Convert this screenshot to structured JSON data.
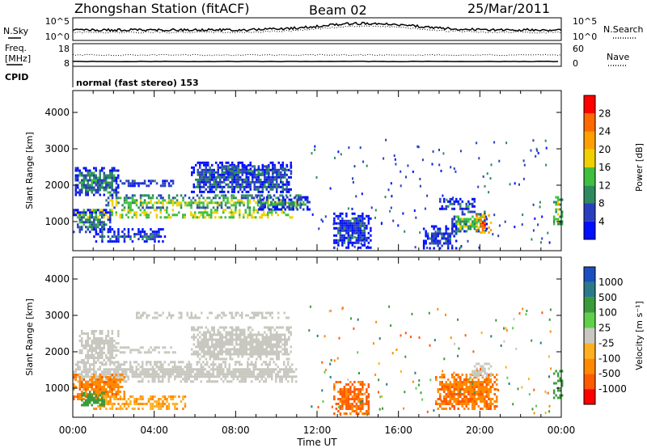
{
  "header": {
    "station": "Zhongshan Station (fitACF)",
    "beam": "Beam 02",
    "date": "25/Mar/2011"
  },
  "strips": {
    "nsky_label": "N.Sky",
    "nsky_ticks": [
      "10^5",
      "10^0"
    ],
    "nsearch_label": "N.Search",
    "nsearch_ticks": [
      "10^5",
      "10^0"
    ],
    "freq_label_1": "Freq.",
    "freq_label_2": "[MHz]",
    "freq_ticks": [
      "18",
      "8"
    ],
    "nave_label": "Nave",
    "nave_ticks": [
      "60",
      "0"
    ],
    "cpid_label": "CPID",
    "cpid_text": "normal (fast stereo) 153"
  },
  "chart_data": [
    {
      "type": "heatmap",
      "panel": "power",
      "ylabel": "Slant Range [km]",
      "xlabel": "Time UT",
      "x_ticks": [
        "00:00",
        "04:00",
        "08:00",
        "12:00",
        "16:00",
        "20:00",
        "00:00"
      ],
      "xlim_hours": [
        0,
        24
      ],
      "ylim": [
        200,
        4600
      ],
      "y_ticks": [
        1000,
        2000,
        3000,
        4000
      ],
      "colorbar_label": "Power [dB]",
      "colorbar_ticks": [
        4,
        8,
        12,
        16,
        20,
        24,
        28
      ],
      "colorbar_colors": [
        "#0010ff",
        "#2a3fbf",
        "#2e8a5e",
        "#3fbf3f",
        "#f0d000",
        "#ffa000",
        "#ff6a00",
        "#ff0000"
      ],
      "blobs": [
        {
          "t0": 0.0,
          "t1": 10.8,
          "r0": 1130,
          "r1": 1350,
          "v": 22
        },
        {
          "t0": 1.6,
          "t1": 11.2,
          "r0": 1380,
          "r1": 1750,
          "v": 15
        },
        {
          "t0": 0.1,
          "t1": 2.2,
          "r0": 1700,
          "r1": 2500,
          "v": 9
        },
        {
          "t0": 2.0,
          "t1": 5.0,
          "r0": 1950,
          "r1": 2150,
          "v": 11
        },
        {
          "t0": 0.0,
          "t1": 1.8,
          "r0": 700,
          "r1": 1350,
          "v": 9
        },
        {
          "t0": 1.0,
          "t1": 4.5,
          "r0": 420,
          "r1": 820,
          "v": 6
        },
        {
          "t0": 5.8,
          "t1": 10.7,
          "r0": 1800,
          "r1": 2650,
          "v": 6
        },
        {
          "t0": 7.4,
          "t1": 10.7,
          "r0": 2300,
          "r1": 2550,
          "v": 12
        },
        {
          "t0": 9.0,
          "t1": 11.6,
          "r0": 1350,
          "r1": 1700,
          "v": 10
        },
        {
          "t0": 18.0,
          "t1": 19.7,
          "r0": 1350,
          "r1": 1650,
          "v": 10
        },
        {
          "t0": 18.6,
          "t1": 20.3,
          "r0": 700,
          "r1": 1300,
          "v": 13
        },
        {
          "t0": 19.8,
          "t1": 20.5,
          "r0": 700,
          "r1": 1200,
          "v": 27
        },
        {
          "t0": 17.2,
          "t1": 18.8,
          "r0": 250,
          "r1": 900,
          "v": 6
        },
        {
          "t0": 12.8,
          "t1": 14.6,
          "r0": 300,
          "r1": 1250,
          "v": 5
        },
        {
          "t0": 23.6,
          "t1": 24.0,
          "r0": 900,
          "r1": 1700,
          "v": 18
        }
      ]
    },
    {
      "type": "heatmap",
      "panel": "velocity",
      "ylabel": "Slant Range [km]",
      "xlabel": "Time UT",
      "x_ticks": [
        "00:00",
        "04:00",
        "08:00",
        "12:00",
        "16:00",
        "20:00",
        "00:00"
      ],
      "xlim_hours": [
        0,
        24
      ],
      "ylim": [
        200,
        4600
      ],
      "y_ticks": [
        1000,
        2000,
        3000,
        4000
      ],
      "colorbar_label": "Velocity [m s⁻¹]",
      "colorbar_ticks": [
        "1000",
        "500",
        "100",
        "25",
        "-25",
        "-100",
        "-500",
        "-1000"
      ],
      "colorbar_colors": [
        "#1b4fbf",
        "#2a7a8a",
        "#3b9b3b",
        "#5fd04a",
        "#c8c8c0",
        "#ffb020",
        "#ff8a00",
        "#ff5a00",
        "#ff0000"
      ],
      "blobs": [
        {
          "t0": 0.0,
          "t1": 11.0,
          "r0": 1150,
          "r1": 1750,
          "v": 0
        },
        {
          "t0": 0.3,
          "t1": 2.2,
          "r0": 1700,
          "r1": 2600,
          "v": 0
        },
        {
          "t0": 2.0,
          "t1": 5.0,
          "r0": 1950,
          "r1": 2150,
          "v": 0
        },
        {
          "t0": 5.8,
          "t1": 10.7,
          "r0": 1800,
          "r1": 2700,
          "v": 0
        },
        {
          "t0": 3.0,
          "t1": 10.6,
          "r0": 2950,
          "r1": 3100,
          "v": 0
        },
        {
          "t0": 0.0,
          "t1": 2.5,
          "r0": 700,
          "r1": 1400,
          "v": -420
        },
        {
          "t0": 1.0,
          "t1": 5.5,
          "r0": 400,
          "r1": 800,
          "v": -90
        },
        {
          "t0": 0.3,
          "t1": 1.5,
          "r0": 500,
          "r1": 900,
          "v": 200
        },
        {
          "t0": 17.8,
          "t1": 20.8,
          "r0": 400,
          "r1": 1400,
          "v": -450
        },
        {
          "t0": 19.5,
          "t1": 20.5,
          "r0": 1350,
          "r1": 1700,
          "v": 0
        },
        {
          "t0": 12.8,
          "t1": 14.5,
          "r0": 300,
          "r1": 1200,
          "v": -600
        },
        {
          "t0": 23.6,
          "t1": 24.0,
          "r0": 700,
          "r1": 1500,
          "v": 180
        }
      ]
    }
  ]
}
